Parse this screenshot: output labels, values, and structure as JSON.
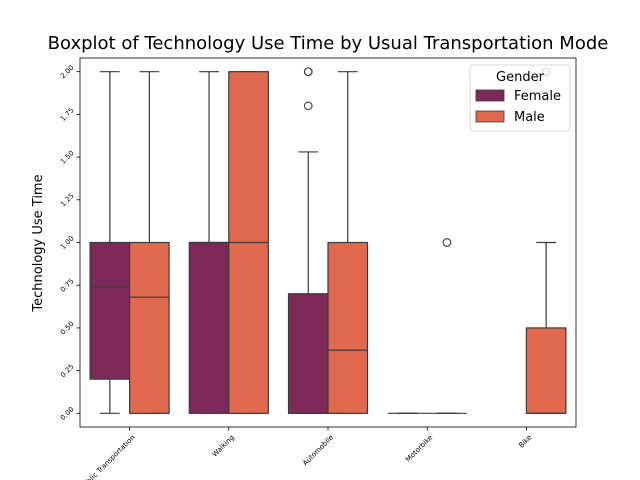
{
  "chart_data": {
    "type": "boxplot",
    "title": "Boxplot of Technology Use Time by Usual Transportation Mode",
    "xlabel": "",
    "ylabel": "Technology Use Time",
    "ylim": [
      -0.08,
      2.08
    ],
    "yticks": [
      "0.00",
      "0.25",
      "0.50",
      "0.75",
      "1.00",
      "1.25",
      "1.50",
      "1.75",
      "2.00"
    ],
    "categories": [
      "Public Transportation",
      "Walking",
      "Automobile",
      "Motorbike",
      "Bike"
    ],
    "legend": {
      "title": "Gender",
      "position": "top-right"
    },
    "grid": false,
    "series": [
      {
        "name": "Female",
        "color": "#7d2a59",
        "boxes": [
          {
            "q1": 0.2,
            "median": 0.74,
            "q3": 1.0,
            "whisker_low": 0.0,
            "whisker_high": 2.0,
            "outliers": []
          },
          {
            "q1": 0.0,
            "median": 1.0,
            "q3": 1.0,
            "whisker_low": 0.0,
            "whisker_high": 2.0,
            "outliers": []
          },
          {
            "q1": 0.0,
            "median": 0.0,
            "q3": 0.7,
            "whisker_low": 0.0,
            "whisker_high": 1.53,
            "outliers": [
              1.8,
              2.0,
              2.0
            ]
          },
          {
            "q1": 0.0,
            "median": 0.0,
            "q3": 0.0,
            "whisker_low": 0.0,
            "whisker_high": 0.0,
            "outliers": []
          },
          null
        ]
      },
      {
        "name": "Male",
        "color": "#e06950",
        "boxes": [
          {
            "q1": 0.0,
            "median": 0.68,
            "q3": 1.0,
            "whisker_low": 0.0,
            "whisker_high": 2.0,
            "outliers": []
          },
          {
            "q1": 0.0,
            "median": 1.0,
            "q3": 2.0,
            "whisker_low": 0.0,
            "whisker_high": 2.0,
            "outliers": []
          },
          {
            "q1": 0.0,
            "median": 0.37,
            "q3": 1.0,
            "whisker_low": 0.0,
            "whisker_high": 2.0,
            "outliers": []
          },
          {
            "q1": 0.0,
            "median": 0.0,
            "q3": 0.0,
            "whisker_low": 0.0,
            "whisker_high": 0.0,
            "outliers": [
              1.0
            ]
          },
          {
            "q1": 0.0,
            "median": 0.0,
            "q3": 0.5,
            "whisker_low": 0.0,
            "whisker_high": 1.0,
            "outliers": [
              2.0
            ]
          }
        ]
      }
    ]
  }
}
